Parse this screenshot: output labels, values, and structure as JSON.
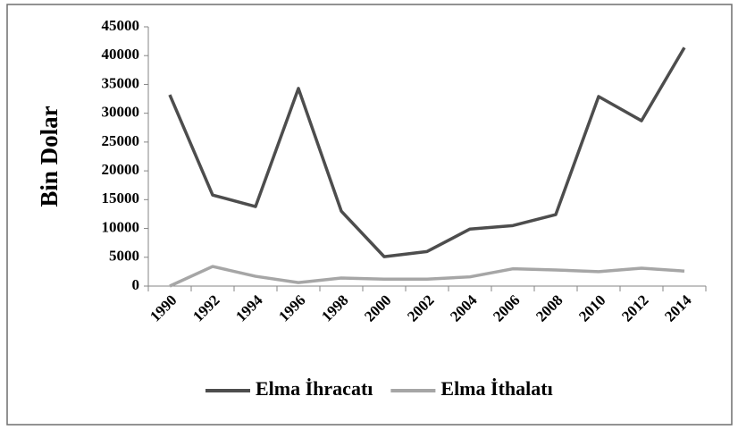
{
  "chart_data": {
    "type": "line",
    "y_label": "Bin Dolar",
    "categories": [
      "1990",
      "1992",
      "1994",
      "1996",
      "1998",
      "2000",
      "2002",
      "2004",
      "2006",
      "2008",
      "2010",
      "2012",
      "2014"
    ],
    "series": [
      {
        "name": "Elma İhracatı",
        "color": "#4d4d4d",
        "values": [
          33200,
          15800,
          13800,
          34300,
          13000,
          5100,
          6000,
          9900,
          10500,
          12400,
          32900,
          28700,
          41400
        ]
      },
      {
        "name": "Elma İthalatı",
        "color": "#a6a6a6",
        "values": [
          0,
          3400,
          1700,
          600,
          1400,
          1200,
          1200,
          1600,
          3000,
          2800,
          2500,
          3100,
          2600
        ]
      }
    ],
    "ylim": [
      0,
      45000
    ],
    "yticks": [
      0,
      5000,
      10000,
      15000,
      20000,
      25000,
      30000,
      35000,
      40000,
      45000
    ],
    "grid": false,
    "legend": "bottom"
  }
}
